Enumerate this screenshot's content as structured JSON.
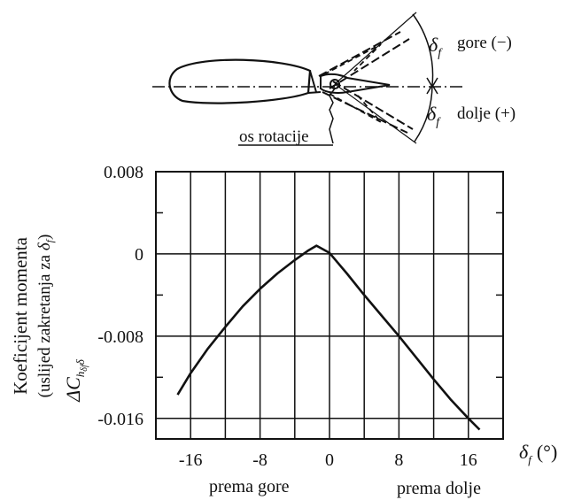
{
  "diagram": {
    "delta_symbol": "δ",
    "delta_sub": "f",
    "up_label": "gore (−)",
    "down_label": "dolje (+)",
    "axis_label": "os rotacije"
  },
  "chart_data": {
    "type": "line",
    "title": "",
    "ylabel_line1": "Koeficijent momenta",
    "ylabel_line2_text": "(uslijed zakretanja za ",
    "ylabel_line2_sym": "δ",
    "ylabel_line2_sub": "f",
    "ylabel_line2_end": ")",
    "ylabel_symbol": "ΔC",
    "ylabel_symbol_sub": "h",
    "ylabel_symbol_subsub": "δf",
    "ylabel_symbol_suffix": "δ",
    "xlabel_symbol": "δ",
    "xlabel_sub": "f",
    "xlabel_unit": "(°)",
    "xlabel_left": "prema gore",
    "xlabel_right": "prema dolje",
    "xlim": [
      -20,
      20
    ],
    "ylim": [
      -0.018,
      0.008
    ],
    "xticks": [
      -16,
      -8,
      0,
      8,
      16
    ],
    "xtick_labels": [
      "-16",
      "-8",
      "0",
      "8",
      "16"
    ],
    "yticks": [
      0.008,
      0,
      -0.008,
      -0.016
    ],
    "ytick_labels": [
      "0.008",
      "0",
      "-0.008",
      "-0.016"
    ],
    "x_minor_grid": [
      -12,
      -4,
      4,
      12
    ],
    "y_minor_ticks": [
      0.004,
      -0.004,
      -0.012
    ],
    "grid": true,
    "series": [
      {
        "values": [
          [
            -17.5,
            -0.0137
          ],
          [
            -16,
            -0.0116
          ],
          [
            -14,
            -0.0092
          ],
          [
            -12,
            -0.0071
          ],
          [
            -10,
            -0.0051
          ],
          [
            -8,
            -0.0034
          ],
          [
            -6,
            -0.0019
          ],
          [
            -4,
            -0.0006
          ],
          [
            -2.5,
            0.0003
          ],
          [
            -1.5,
            0.0008
          ],
          [
            0,
            0.0001
          ],
          [
            2,
            -0.0019
          ],
          [
            4,
            -0.004
          ],
          [
            6,
            -0.006
          ],
          [
            8,
            -0.008
          ],
          [
            10,
            -0.0101
          ],
          [
            12,
            -0.0122
          ],
          [
            14,
            -0.0142
          ],
          [
            16,
            -0.016
          ],
          [
            17.3,
            -0.0171
          ]
        ]
      }
    ]
  }
}
